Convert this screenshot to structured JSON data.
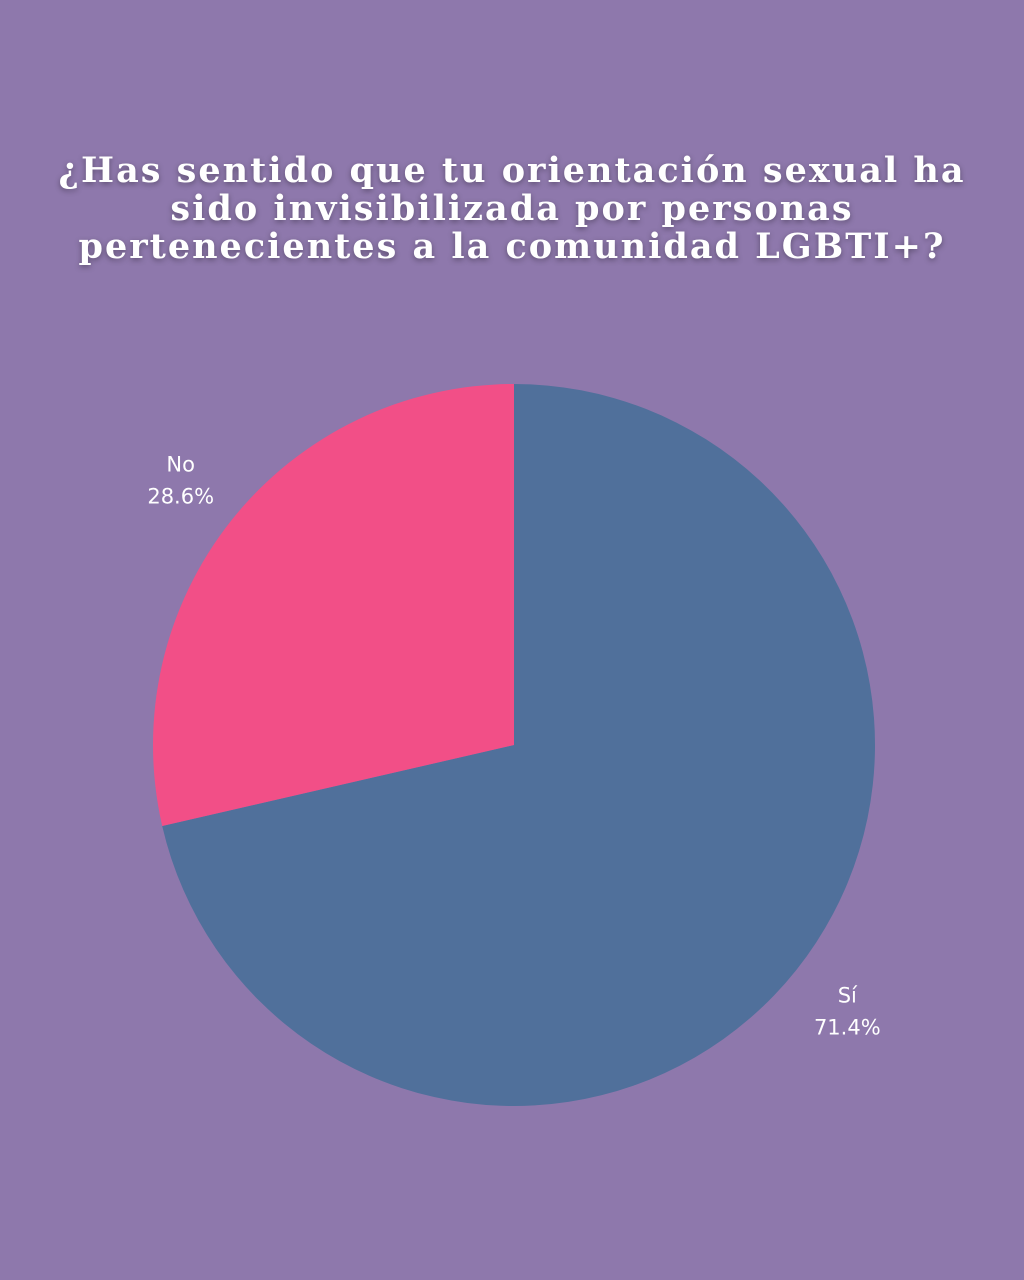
{
  "chart_data": {
    "type": "pie",
    "title": "¿Has sentido que tu orientación sexual ha sido invisibilizada por personas pertenecientes a la comunidad LGBTI+?",
    "slices": [
      {
        "label": "Sí",
        "value": 71.4,
        "value_label": "71.4%",
        "color": "#50709B"
      },
      {
        "label": "No",
        "value": 28.6,
        "value_label": "28.6%",
        "color": "#F24F87"
      }
    ],
    "start": "top",
    "direction": "clockwise"
  },
  "colors": {
    "background": "#8E78AC"
  }
}
